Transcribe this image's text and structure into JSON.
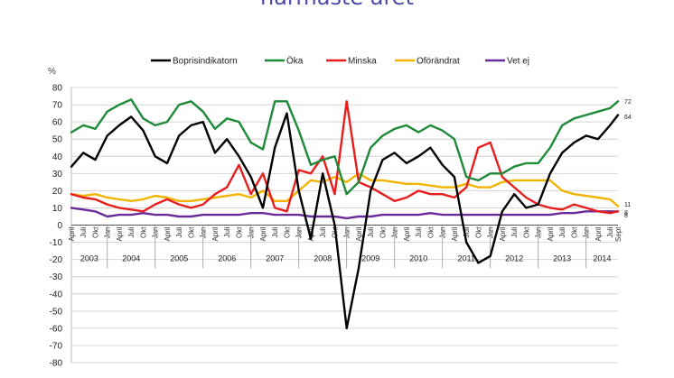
{
  "page": {
    "title": "närmaste året"
  },
  "chart_data": {
    "type": "line",
    "title": "",
    "xlabel": "",
    "ylabel": "%",
    "ylim": [
      -80,
      80
    ],
    "ytick_step": 10,
    "grid": "horizontal",
    "legend_position": "top-center",
    "month_labels": [
      "April",
      "Juli",
      "Okt",
      "Jan"
    ],
    "years": [
      "2003",
      "2004",
      "2005",
      "2006",
      "2007",
      "2008",
      "2009",
      "2010",
      "2011",
      "2012",
      "2013",
      "2014"
    ],
    "last_month_label": "Sept",
    "end_labels": [
      "72",
      "64",
      "11",
      "8",
      "8"
    ],
    "x": [
      "2003-04",
      "2003-07",
      "2003-10",
      "2004-01",
      "2004-04",
      "2004-07",
      "2004-10",
      "2005-01",
      "2005-04",
      "2005-07",
      "2005-10",
      "2006-01",
      "2006-04",
      "2006-07",
      "2006-10",
      "2007-01",
      "2007-04",
      "2007-07",
      "2007-10",
      "2008-01",
      "2008-04",
      "2008-07",
      "2008-10",
      "2009-01",
      "2009-04",
      "2009-07",
      "2009-10",
      "2010-01",
      "2010-04",
      "2010-07",
      "2010-10",
      "2011-01",
      "2011-04",
      "2011-07",
      "2011-10",
      "2012-01",
      "2012-04",
      "2012-07",
      "2012-10",
      "2013-01",
      "2013-04",
      "2013-07",
      "2013-10",
      "2014-01",
      "2014-04",
      "2014-07",
      "2014-09"
    ],
    "series": [
      {
        "name": "Boprisindikatorn",
        "color": "#000000",
        "values": [
          34,
          42,
          38,
          52,
          58,
          63,
          55,
          40,
          36,
          52,
          58,
          60,
          42,
          50,
          40,
          28,
          10,
          45,
          65,
          20,
          -8,
          30,
          0,
          -60,
          -25,
          20,
          38,
          42,
          36,
          40,
          45,
          35,
          28,
          -10,
          -22,
          -18,
          8,
          18,
          10,
          12,
          30,
          42,
          48,
          52,
          50,
          58,
          64
        ]
      },
      {
        "name": "Öka",
        "color": "#1e8a3a",
        "values": [
          54,
          58,
          56,
          66,
          70,
          73,
          62,
          58,
          60,
          70,
          72,
          66,
          56,
          62,
          60,
          48,
          44,
          72,
          72,
          55,
          35,
          38,
          40,
          18,
          25,
          45,
          52,
          56,
          58,
          54,
          58,
          55,
          50,
          28,
          26,
          30,
          30,
          34,
          36,
          36,
          45,
          58,
          62,
          64,
          66,
          68,
          72
        ]
      },
      {
        "name": "Minska",
        "color": "#e81e1e",
        "values": [
          18,
          16,
          15,
          12,
          10,
          9,
          8,
          12,
          15,
          12,
          10,
          12,
          18,
          22,
          35,
          18,
          30,
          10,
          8,
          32,
          30,
          40,
          18,
          72,
          25,
          22,
          18,
          14,
          16,
          20,
          18,
          18,
          16,
          22,
          45,
          48,
          28,
          22,
          16,
          12,
          10,
          9,
          12,
          10,
          8,
          7,
          8
        ]
      },
      {
        "name": "Oförändrat",
        "color": "#f2b400",
        "values": [
          18,
          17,
          18,
          16,
          15,
          14,
          15,
          17,
          16,
          14,
          14,
          15,
          16,
          17,
          18,
          16,
          20,
          14,
          14,
          20,
          26,
          25,
          28,
          25,
          30,
          26,
          26,
          25,
          24,
          24,
          23,
          22,
          22,
          24,
          22,
          22,
          25,
          26,
          26,
          26,
          26,
          20,
          18,
          17,
          16,
          15,
          11
        ]
      },
      {
        "name": "Vet ej",
        "color": "#6a2c9a",
        "values": [
          10,
          9,
          8,
          5,
          6,
          6,
          7,
          6,
          6,
          5,
          5,
          6,
          6,
          6,
          6,
          7,
          7,
          6,
          6,
          6,
          5,
          5,
          5,
          4,
          5,
          5,
          6,
          6,
          6,
          6,
          7,
          6,
          6,
          6,
          6,
          6,
          6,
          6,
          6,
          6,
          6,
          7,
          7,
          8,
          8,
          8,
          8
        ]
      }
    ]
  }
}
